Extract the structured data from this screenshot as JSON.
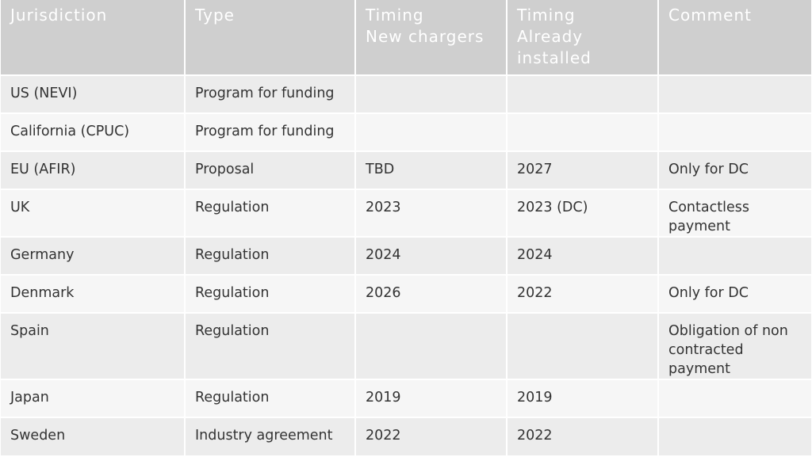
{
  "table": {
    "headers": [
      [
        "Jurisdiction"
      ],
      [
        "Type"
      ],
      [
        "Timing",
        "New chargers"
      ],
      [
        "Timing",
        "Already",
        "installed"
      ],
      [
        "Comment"
      ]
    ],
    "rows": [
      {
        "jurisdiction": "US (NEVI)",
        "type": "Program for funding",
        "timing_new": "",
        "timing_installed": "",
        "comment": []
      },
      {
        "jurisdiction": "California (CPUC)",
        "type": "Program for funding",
        "timing_new": "",
        "timing_installed": "",
        "comment": []
      },
      {
        "jurisdiction": "EU (AFIR)",
        "type": "Proposal",
        "timing_new": "TBD",
        "timing_installed": "2027",
        "comment": [
          "Only for DC"
        ]
      },
      {
        "jurisdiction": "UK",
        "type": "Regulation",
        "timing_new": "2023",
        "timing_installed": "2023 (DC)",
        "comment": [
          "Contactless",
          "payment"
        ]
      },
      {
        "jurisdiction": "Germany",
        "type": "Regulation",
        "timing_new": "2024",
        "timing_installed": "2024",
        "comment": []
      },
      {
        "jurisdiction": "Denmark",
        "type": "Regulation",
        "timing_new": "2026",
        "timing_installed": "2022",
        "comment": [
          "Only for DC"
        ]
      },
      {
        "jurisdiction": "Spain",
        "type": "Regulation",
        "timing_new": "",
        "timing_installed": "",
        "comment": [
          "Obligation of non",
          "contracted",
          "payment"
        ]
      },
      {
        "jurisdiction": "Japan",
        "type": "Regulation",
        "timing_new": "2019",
        "timing_installed": "2019",
        "comment": []
      },
      {
        "jurisdiction": "Sweden",
        "type": "Industry agreement",
        "timing_new": "2022",
        "timing_installed": "2022",
        "comment": []
      }
    ]
  },
  "colors": {
    "header_bg": "#cfcfcf",
    "header_text": "#ffffff",
    "row_odd_bg": "#ececec",
    "row_even_bg": "#f6f6f6",
    "body_text": "#333333"
  }
}
